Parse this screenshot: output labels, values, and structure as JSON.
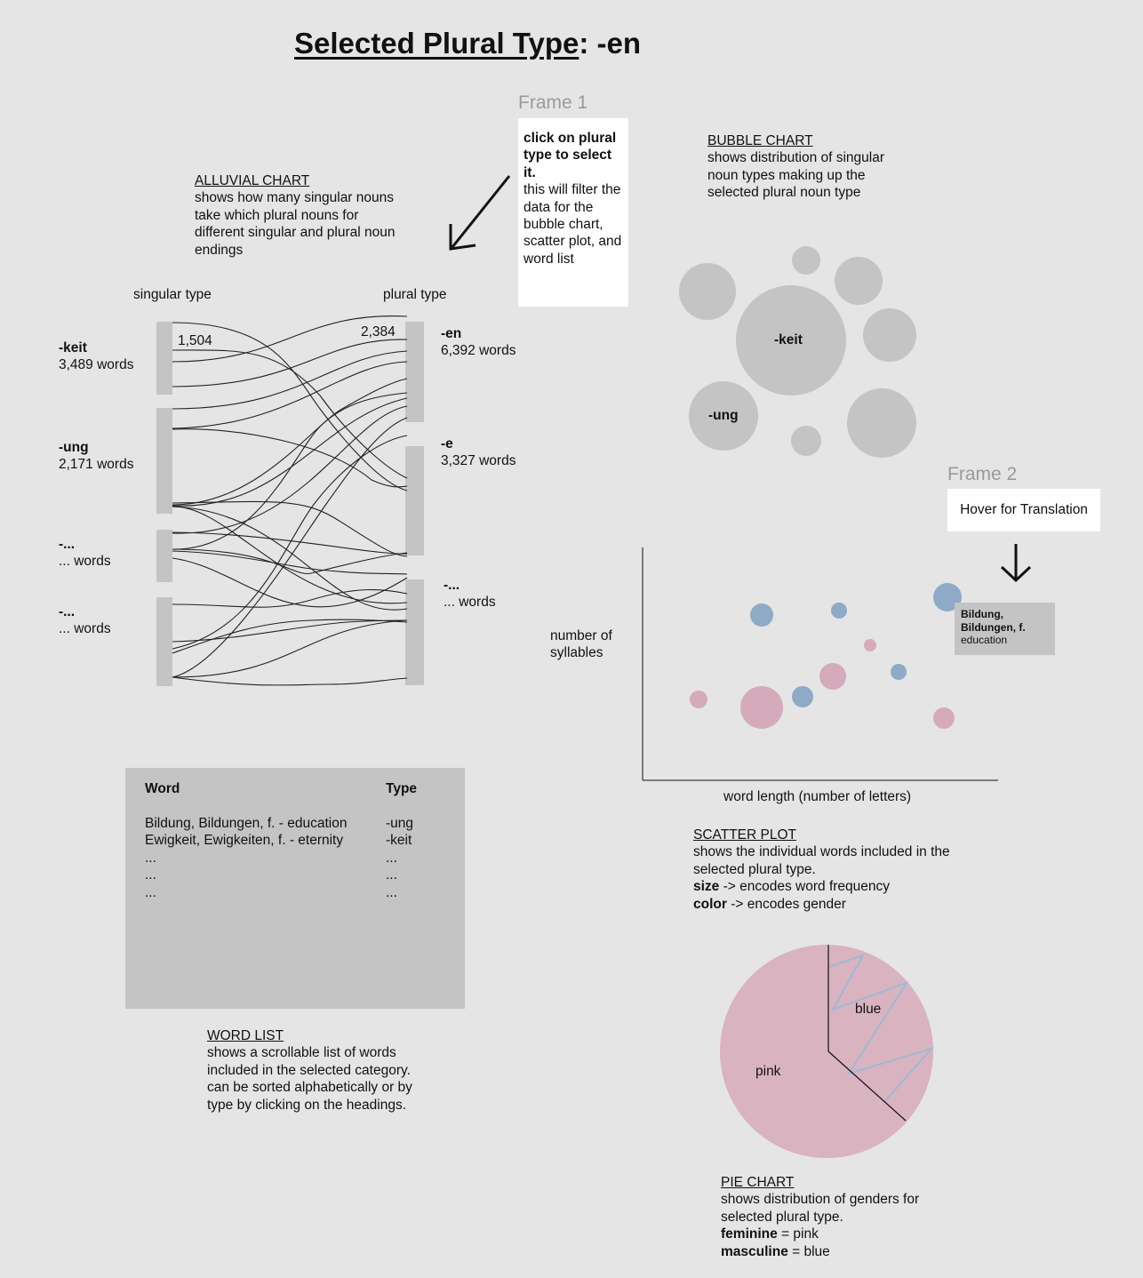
{
  "title": {
    "prefix": "Selected Plural Type",
    "suffix": ": -en"
  },
  "frame1": {
    "label": "Frame 1",
    "card_bold": "click on plural type to select it.",
    "card_text": "this will filter the data for the bubble chart, scatter plot, and word list"
  },
  "frame2": {
    "label": "Frame 2",
    "card_text": "Hover for Translation"
  },
  "alluvial": {
    "heading": "ALLUVIAL CHART",
    "description": "shows how many singular nouns take which plural nouns for different singular and plural noun endings",
    "singular_header": "singular type",
    "plural_header": "plural type",
    "flow_label_left": "1,504",
    "flow_label_right": "2,384",
    "singular": [
      {
        "name": "-keit",
        "count": "3,489 words"
      },
      {
        "name": "-ung",
        "count": "2,171 words"
      },
      {
        "name": "-...",
        "count": "... words"
      },
      {
        "name": "-...",
        "count": "... words"
      }
    ],
    "plural": [
      {
        "name": "-en",
        "count": "6,392 words"
      },
      {
        "name": "-e",
        "count": "3,327 words"
      },
      {
        "name": "-...",
        "count": "... words"
      }
    ]
  },
  "bubble": {
    "heading": "BUBBLE CHART",
    "description": "shows distribution of singular noun types making up the selected plural noun type",
    "labels": [
      "-keit",
      "-ung"
    ]
  },
  "scatter": {
    "heading": "SCATTER PLOT",
    "description": "shows the individual words included in the selected plural type.",
    "size_key": "size",
    "size_text": " -> encodes word frequency",
    "color_key": "color",
    "color_text": " -> encodes gender",
    "xlabel": "word length (number of letters)",
    "ylabel": "number of syllables",
    "tooltip_bold": "Bildung, Bildungen, f.",
    "tooltip_text": "education",
    "colors": {
      "feminine": "#d5aabb",
      "masculine": "#8eaac6"
    }
  },
  "word_list": {
    "heading": "WORD LIST",
    "description1": "shows a scrollable list of words included in the selected category.",
    "description2": "can be sorted alphabetically or by type by clicking on the headings.",
    "col_word": "Word",
    "col_type": "Type",
    "rows": [
      {
        "word": "Bildung, Bildungen, f. - education",
        "type": "-ung"
      },
      {
        "word": "Ewigkeit, Ewigkeiten, f. - eternity",
        "type": "-keit"
      },
      {
        "word": "...",
        "type": "..."
      },
      {
        "word": "...",
        "type": "..."
      },
      {
        "word": "...",
        "type": "..."
      }
    ]
  },
  "pie": {
    "heading": "PIE CHART",
    "description": "shows distribution of genders for selected plural type.",
    "fem_key": "feminine",
    "fem_text": " = pink",
    "masc_key": "masculine",
    "masc_text": " = blue",
    "label_pink": "pink",
    "label_blue": "blue",
    "colors": {
      "pink": "#d9b3c0",
      "blue": "#9dbad2"
    }
  }
}
